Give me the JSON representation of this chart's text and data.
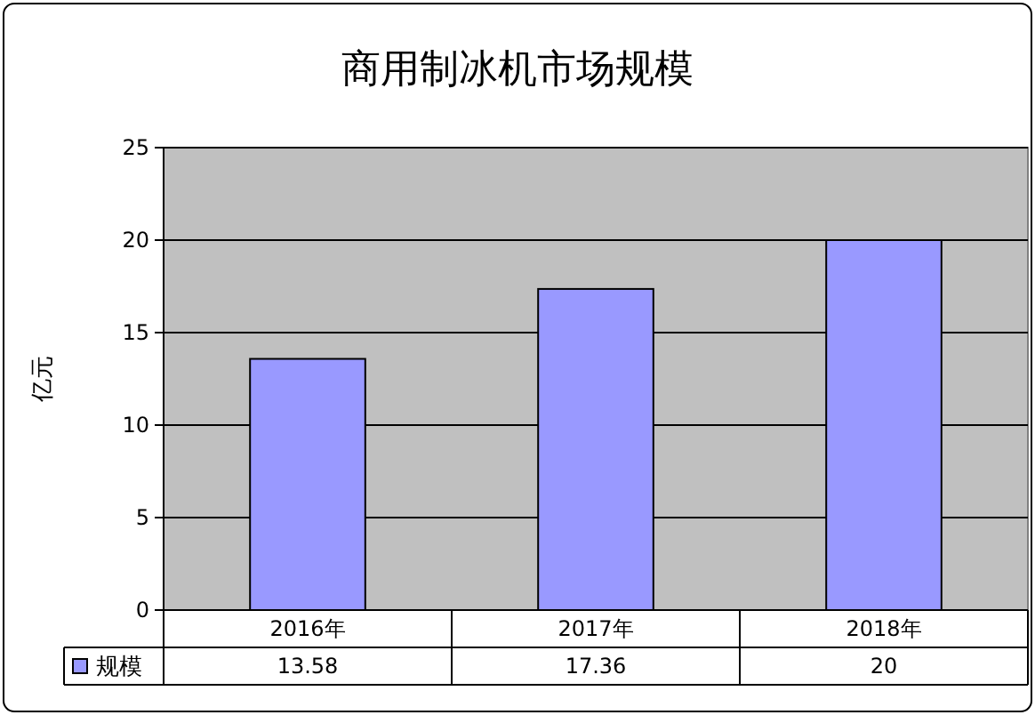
{
  "chart_data": {
    "type": "bar",
    "title": "商用制冰机市场规模",
    "ylabel": "亿元",
    "categories": [
      "2016年",
      "2017年",
      "2018年"
    ],
    "series": [
      {
        "name": "规模",
        "color": "#9999ff",
        "values": [
          13.58,
          17.36,
          20
        ]
      }
    ],
    "ylim": [
      0,
      25
    ],
    "yticks": [
      0,
      5,
      10,
      15,
      20,
      25
    ],
    "grid": "y",
    "legend": "bottom",
    "data_labels": true
  }
}
